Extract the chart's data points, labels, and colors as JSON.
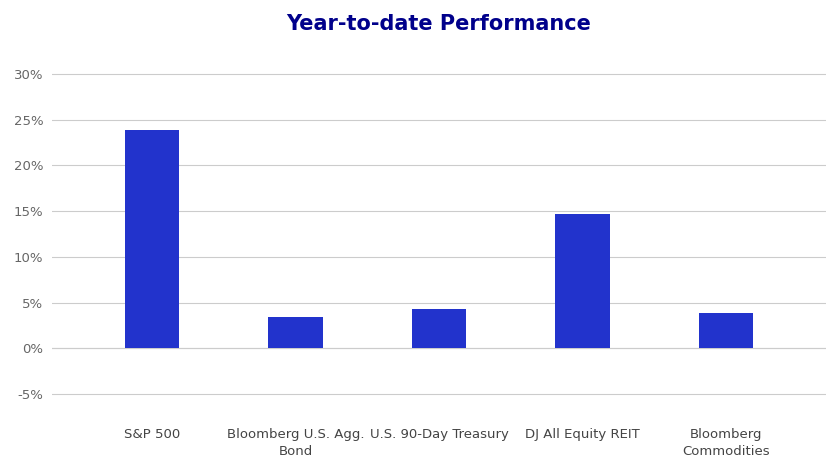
{
  "title": "Year-to-date Performance",
  "title_color": "#00008B",
  "title_fontsize": 15,
  "categories": [
    "S&P 500",
    "Bloomberg U.S. Agg.\nBond",
    "U.S. 90-Day Treasury",
    "DJ All Equity REIT",
    "Bloomberg\nCommodities"
  ],
  "values": [
    23.9,
    3.4,
    4.3,
    14.7,
    3.9
  ],
  "bar_color": "#2233CC",
  "bar_width": 0.38,
  "ylim": [
    -7.5,
    33
  ],
  "yticks": [
    -5,
    0,
    5,
    10,
    15,
    20,
    25,
    30
  ],
  "ytick_labels": [
    "-5%",
    "0%",
    "5%",
    "10%",
    "15%",
    "20%",
    "25%",
    "30%"
  ],
  "background_color": "#ffffff",
  "grid_color": "#cccccc",
  "tick_label_color": "#666666",
  "tick_label_fontsize": 9.5,
  "xlabel_fontsize": 9.5,
  "xlabel_color": "#444444"
}
